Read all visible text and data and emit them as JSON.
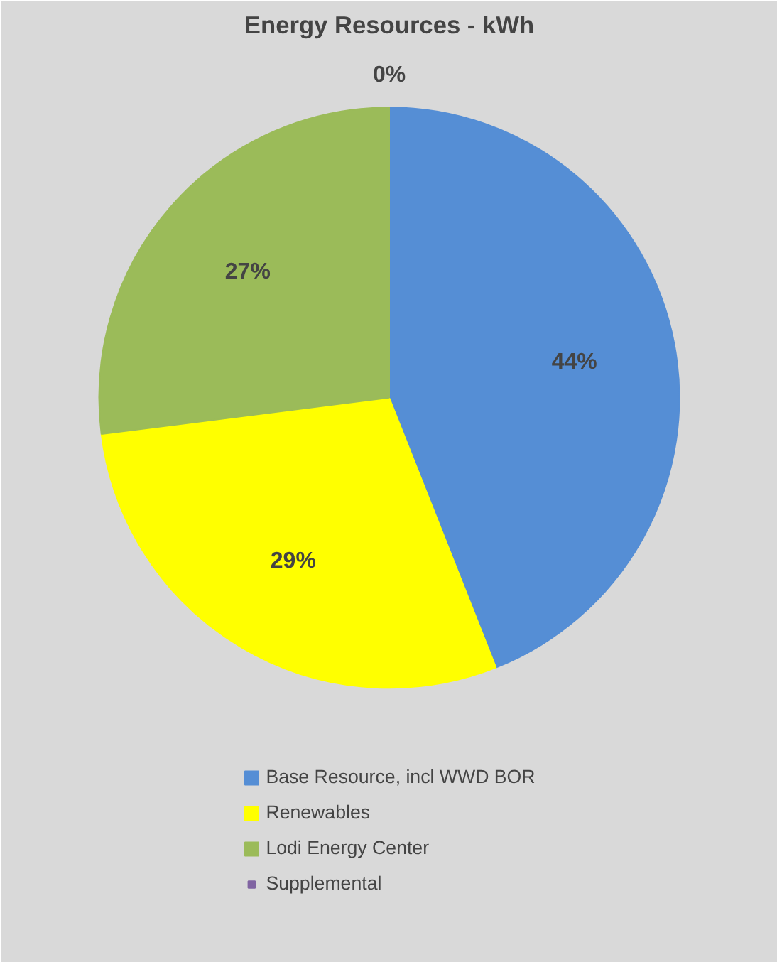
{
  "chart_data": {
    "type": "pie",
    "title": "Energy Resources - kWh",
    "categories": [
      "Base Resource, incl WWD BOR",
      "Renewables",
      "Lodi Energy Center",
      "Supplemental"
    ],
    "values": [
      44,
      29,
      27,
      0
    ],
    "colors": [
      "#558ed5",
      "#ffff00",
      "#9bbb59",
      "#8064a2"
    ],
    "value_labels": [
      "44%",
      "29%",
      "27%",
      "0%"
    ],
    "legend": "bottom"
  }
}
